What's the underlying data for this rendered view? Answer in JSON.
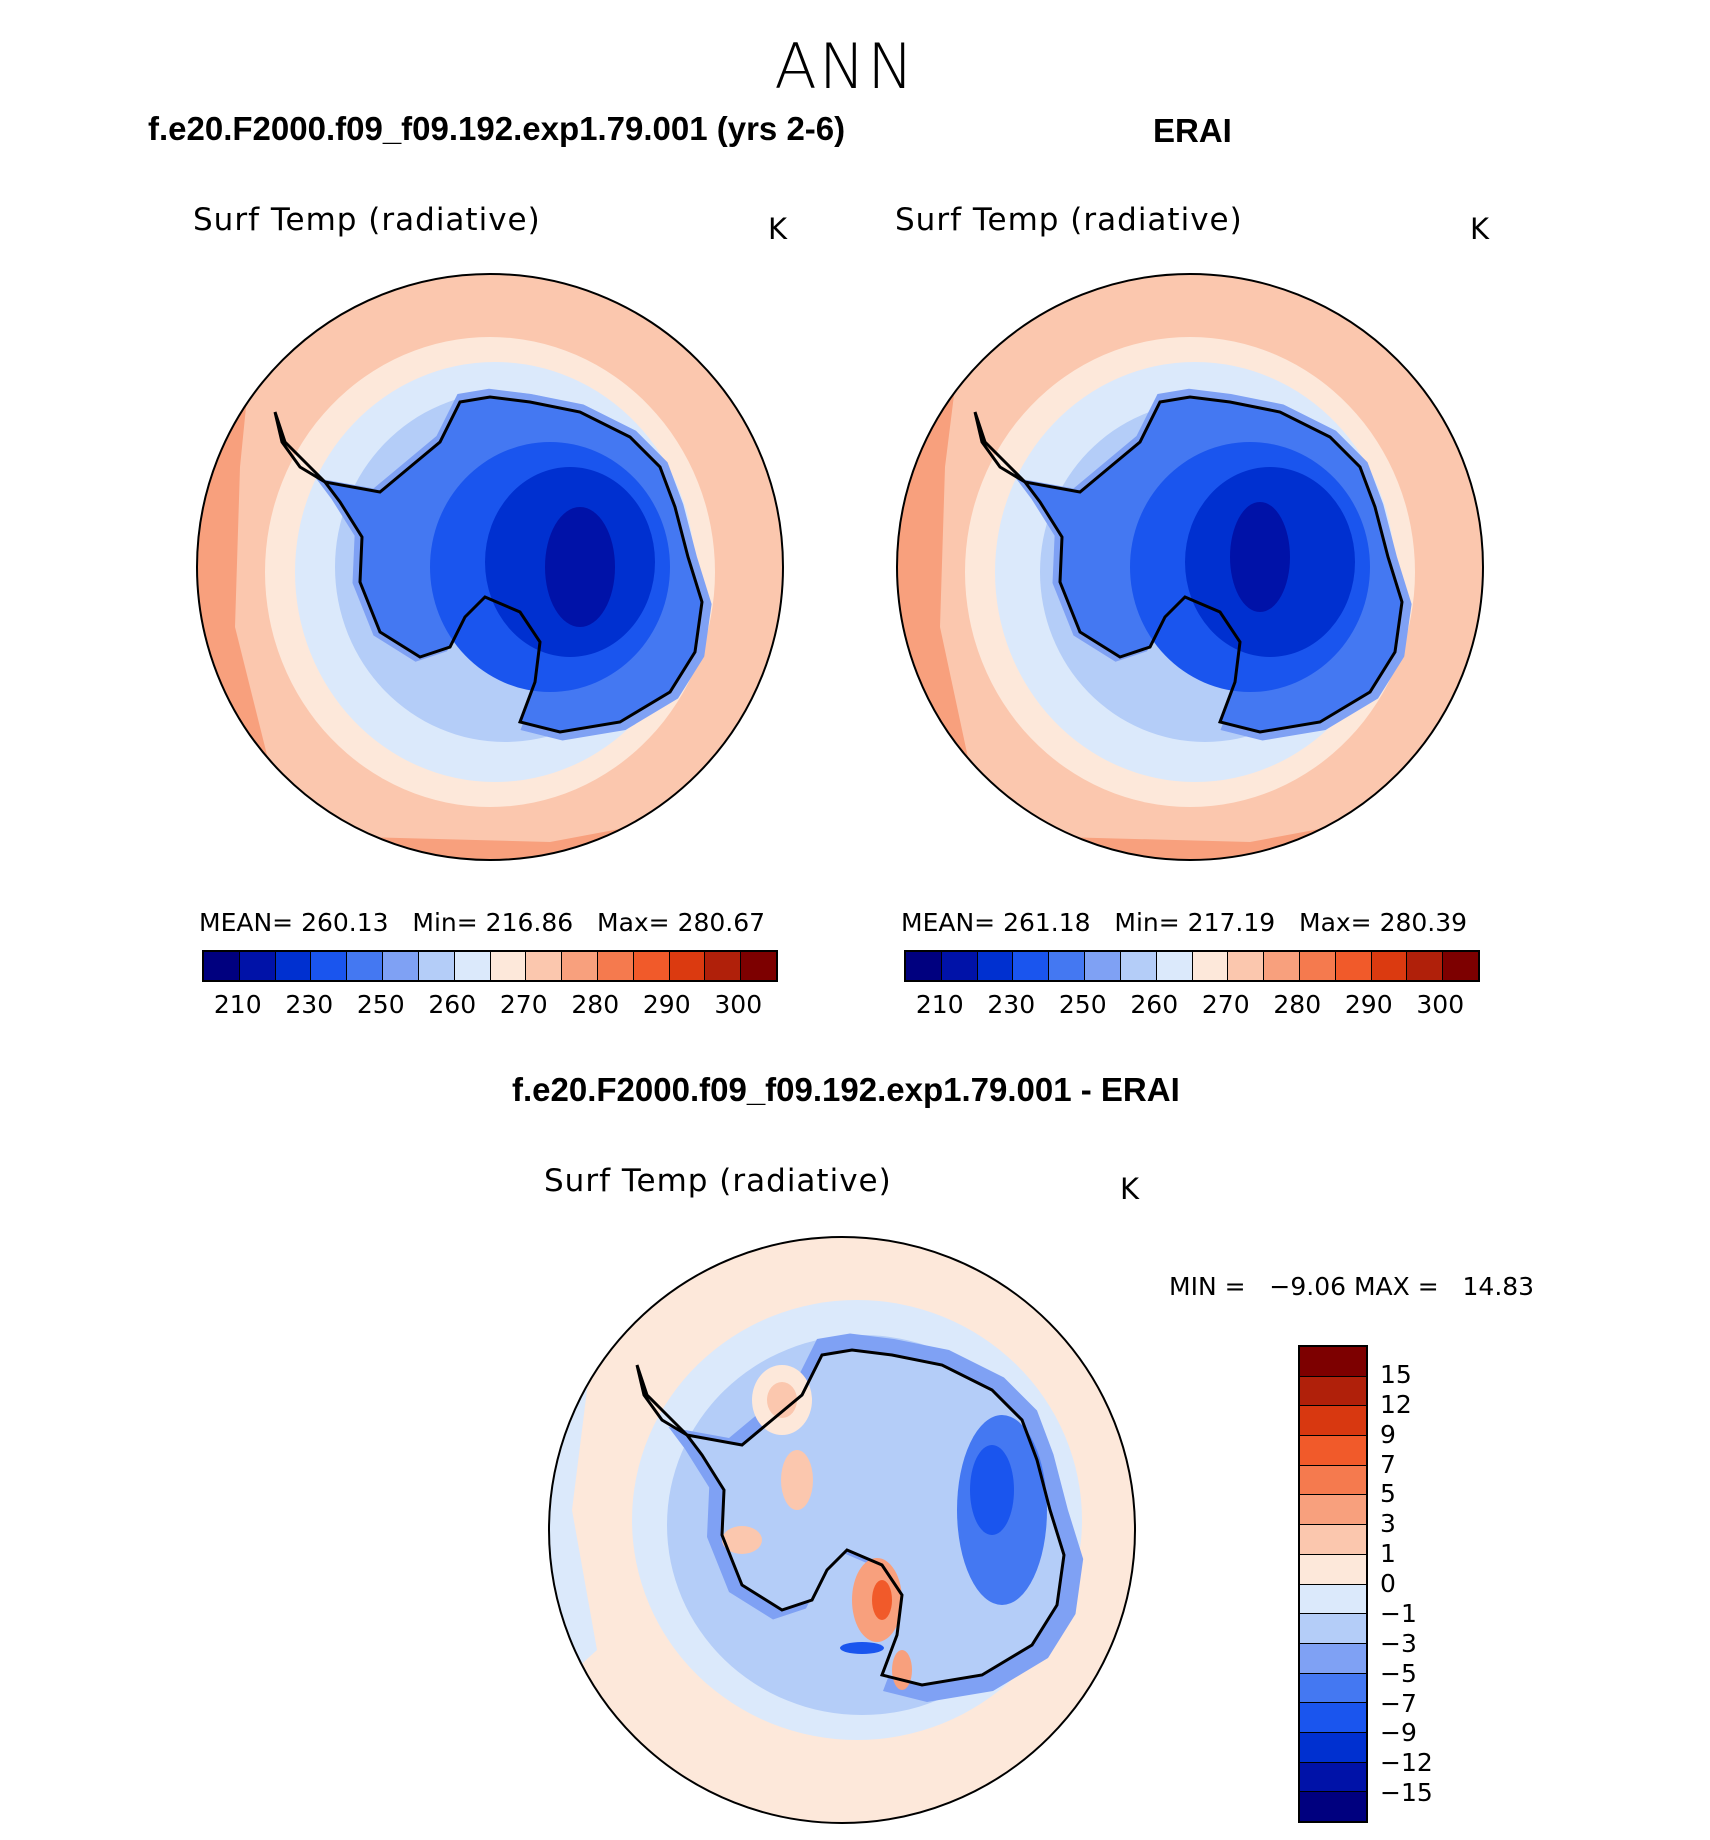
{
  "season": "ANN",
  "panels": [
    {
      "case_title": "f.e20.F2000.f09_f09.192.exp1.79.001 (yrs 2-6)",
      "variable": "Surf Temp (radiative)",
      "units": "K",
      "stats": {
        "mean_label": "MEAN=",
        "mean": "260.13",
        "min_label": "Min=",
        "min": "216.86",
        "max_label": "Max=",
        "max": "280.67"
      }
    },
    {
      "case_title": "ERAI",
      "variable": "Surf Temp (radiative)",
      "units": "K",
      "stats": {
        "mean_label": "MEAN=",
        "mean": "261.18",
        "min_label": "Min=",
        "min": "217.19",
        "max_label": "Max=",
        "max": "280.39"
      }
    }
  ],
  "diff_panel": {
    "case_title": "f.e20.F2000.f09_f09.192.exp1.79.001 - ERAI",
    "variable": "Surf Temp (radiative)",
    "units": "K",
    "stats": {
      "min_label": "MIN =",
      "min": "−9.06",
      "max_label": "MAX =",
      "max": "14.83"
    }
  },
  "colorbar_main": {
    "colors": [
      "#00007f",
      "#0012a8",
      "#0030d0",
      "#1a55ee",
      "#4478f2",
      "#7fa1f4",
      "#b4cdf8",
      "#dbe9fb",
      "#fde8da",
      "#fbc7ae",
      "#f8a07d",
      "#f57a4e",
      "#f15a2a",
      "#db3a10",
      "#b0200a",
      "#7d0000"
    ],
    "tick_labels": [
      "210",
      "230",
      "250",
      "260",
      "270",
      "280",
      "290",
      "300"
    ]
  },
  "colorbar_diff": {
    "colors": [
      "#7d0000",
      "#b0200a",
      "#d83810",
      "#f15a2a",
      "#f57a4e",
      "#f8a07d",
      "#fbc7ae",
      "#fde8da",
      "#dbe9fb",
      "#b4cdf8",
      "#7fa1f4",
      "#4478f2",
      "#1a55ee",
      "#0030d0",
      "#0012a8",
      "#00007f"
    ],
    "tick_labels": [
      "15",
      "12",
      "9",
      "7",
      "5",
      "3",
      "1",
      "0",
      "−1",
      "−3",
      "−5",
      "−7",
      "−9",
      "−12",
      "−15"
    ]
  }
}
